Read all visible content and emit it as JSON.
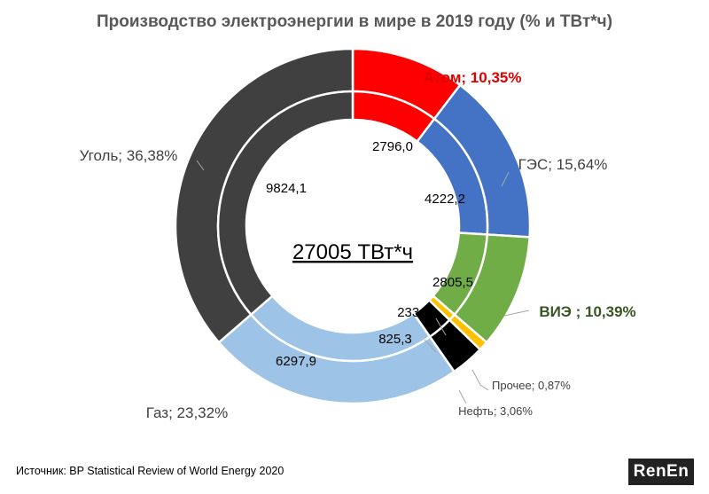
{
  "title": "Производство электроэнергии в мире в 2019 году (% и ТВт*ч)",
  "source": "Источник: BP Statistical Review of World Energy 2020",
  "logo": "RenEn",
  "chart_data": {
    "type": "pie",
    "title": "Производство электроэнергии в мире в 2019 году (% и ТВт*ч)",
    "center_label": "27005 ТВт*ч",
    "total": 27005,
    "unit": "ТВт*ч",
    "series": [
      {
        "name": "Атом",
        "value": 2796.0,
        "value_label": "2796,0",
        "percent": 10.35,
        "label": "Атом; 10,35%",
        "color": "#ff0000",
        "label_color": "#e00000",
        "bold": true
      },
      {
        "name": "ГЭС",
        "value": 4222.2,
        "value_label": "4222,2",
        "percent": 15.64,
        "label": "ГЭС; 15,64%",
        "color": "#4472c4",
        "label_color": "#404040",
        "bold": false
      },
      {
        "name": "ВИЭ",
        "value": 2805.5,
        "value_label": "2805,5",
        "percent": 10.39,
        "label": "ВИЭ ; 10,39%",
        "color": "#70ad47",
        "label_color": "#375623",
        "bold": true
      },
      {
        "name": "Прочее",
        "value": 233.6,
        "value_label": "233,6",
        "percent": 0.87,
        "label": "Прочее; 0,87%",
        "color": "#ffc000",
        "label_color": "#404040",
        "bold": false
      },
      {
        "name": "Нефть",
        "value": 825.3,
        "value_label": "825,3",
        "percent": 3.06,
        "label": "Нефть; 3,06%",
        "color": "#000000",
        "label_color": "#404040",
        "bold": false
      },
      {
        "name": "Газ",
        "value": 6297.9,
        "value_label": "6297,9",
        "percent": 23.32,
        "label": "Газ; 23,32%",
        "color": "#9dc3e6",
        "label_color": "#404040",
        "bold": false
      },
      {
        "name": "Уголь",
        "value": 9824.1,
        "value_label": "9824,1",
        "percent": 36.38,
        "label": "Уголь; 36,38%",
        "color": "#404040",
        "label_color": "#404040",
        "bold": false
      }
    ]
  }
}
